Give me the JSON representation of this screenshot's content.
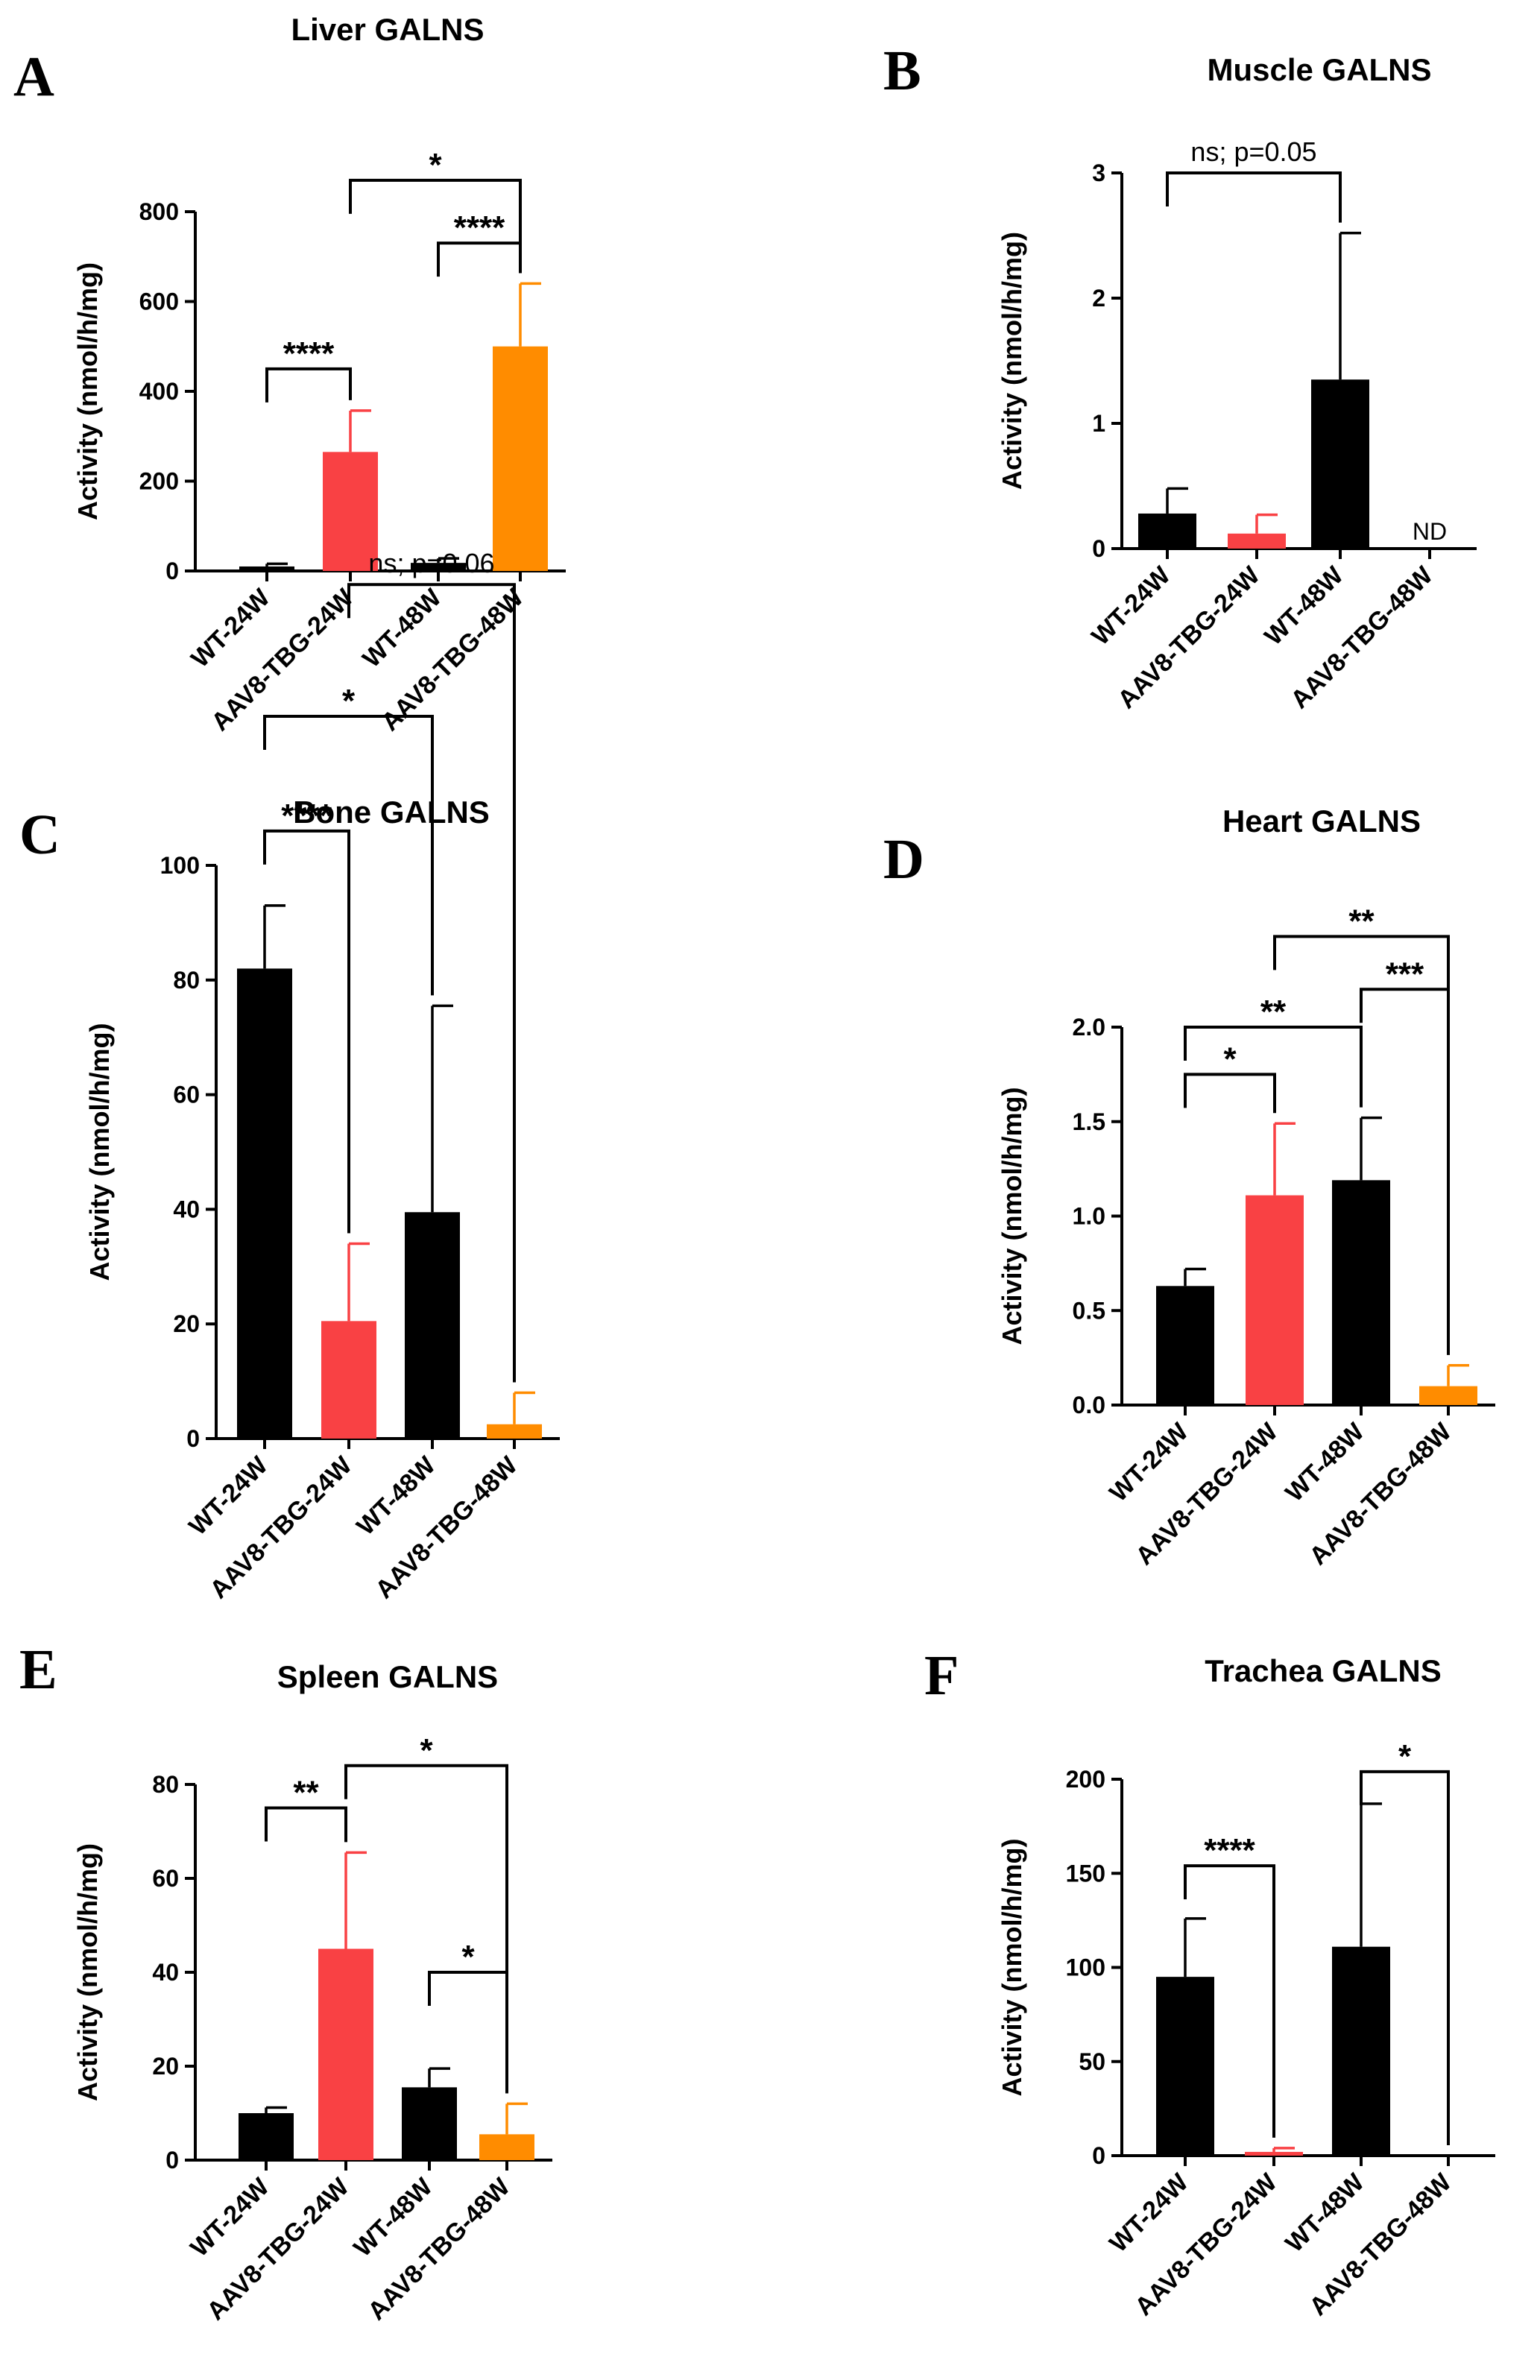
{
  "colors": {
    "WT-24W": "#000000",
    "AAV8-TBG-24W": "#f94144",
    "WT-48W": "#000000",
    "AAV8-TBG-48W": "#ff8c00"
  },
  "chart_data": [
    {
      "panel": "A",
      "type": "bar",
      "title": "Liver GALNS",
      "ylabel": "Activity (nmol/h/mg)",
      "categories": [
        "WT-24W",
        "AAV8-TBG-24W",
        "WT-48W",
        "AAV8-TBG-48W"
      ],
      "values": [
        10,
        265,
        18,
        500
      ],
      "errors": [
        6,
        92,
        10,
        140
      ],
      "ylim": [
        0,
        800
      ],
      "yticks": [
        0,
        200,
        400,
        600,
        800
      ],
      "significance": [
        {
          "from": 0,
          "to": 1,
          "label": "****",
          "y": 450
        },
        {
          "from": 2,
          "to": 3,
          "label": "****",
          "y": 730
        },
        {
          "from": 1,
          "to": 3,
          "label": "*",
          "y": 870
        }
      ],
      "annotations": []
    },
    {
      "panel": "B",
      "type": "bar",
      "title": "Muscle GALNS",
      "ylabel": "Activity (nmol/h/mg)",
      "categories": [
        "WT-24W",
        "AAV8-TBG-24W",
        "WT-48W",
        "AAV8-TBG-48W"
      ],
      "values": [
        0.28,
        0.12,
        1.35,
        0
      ],
      "errors": [
        0.2,
        0.15,
        1.17,
        0
      ],
      "ylim": [
        0,
        3
      ],
      "yticks": [
        0,
        1,
        2,
        3
      ],
      "significance": [
        {
          "from": 0,
          "to": 2,
          "label": "ns; p=0.05",
          "y": 3.0
        }
      ],
      "annotations": [
        {
          "index": 3,
          "text": "ND"
        }
      ]
    },
    {
      "panel": "C",
      "type": "bar",
      "title": "Bone GALNS",
      "ylabel": "Activity (nmol/h/mg)",
      "categories": [
        "WT-24W",
        "AAV8-TBG-24W",
        "WT-48W",
        "AAV8-TBG-48W"
      ],
      "values": [
        82,
        20.5,
        39.5,
        2.5
      ],
      "errors": [
        11,
        13.5,
        36,
        5.5
      ],
      "ylim": [
        0,
        100
      ],
      "yticks": [
        0,
        20,
        40,
        60,
        80,
        100
      ],
      "significance": [
        {
          "from": 0,
          "to": 1,
          "label": "****",
          "y": 106
        },
        {
          "from": 0,
          "to": 2,
          "label": "*",
          "y": 126
        },
        {
          "from": 1,
          "to": 3,
          "label": "ns; p=0.06",
          "y": 149
        }
      ],
      "annotations": []
    },
    {
      "panel": "D",
      "type": "bar",
      "title": "Heart  GALNS",
      "ylabel": "Activity (nmol/h/mg)",
      "categories": [
        "WT-24W",
        "AAV8-TBG-24W",
        "WT-48W",
        "AAV8-TBG-48W"
      ],
      "values": [
        0.63,
        1.11,
        1.19,
        0.1
      ],
      "errors": [
        0.09,
        0.38,
        0.33,
        0.11
      ],
      "ylim": [
        0,
        2.0
      ],
      "yticks": [
        "0.0",
        "0.5",
        "1.0",
        "1.5",
        "2.0"
      ],
      "significance": [
        {
          "from": 0,
          "to": 1,
          "label": "*",
          "y": 1.75
        },
        {
          "from": 0,
          "to": 2,
          "label": "**",
          "y": 2.0
        },
        {
          "from": 2,
          "to": 3,
          "label": "***",
          "y": 2.2
        },
        {
          "from": 1,
          "to": 3,
          "label": "**",
          "y": 2.48
        }
      ],
      "annotations": []
    },
    {
      "panel": "E",
      "type": "bar",
      "title": "Spleen  GALNS",
      "ylabel": "Activity (nmol/h/mg)",
      "categories": [
        "WT-24W",
        "AAV8-TBG-24W",
        "WT-48W",
        "AAV8-TBG-48W"
      ],
      "values": [
        10,
        45,
        15.5,
        5.5
      ],
      "errors": [
        1.2,
        20.5,
        4,
        6.5
      ],
      "ylim": [
        0,
        80
      ],
      "yticks": [
        0,
        20,
        40,
        60,
        80
      ],
      "significance": [
        {
          "from": 0,
          "to": 1,
          "label": "**",
          "y": 75
        },
        {
          "from": 2,
          "to": 3,
          "label": "*",
          "y": 40
        },
        {
          "from": 1,
          "to": 3,
          "label": "*",
          "y": 84
        }
      ],
      "annotations": []
    },
    {
      "panel": "F",
      "type": "bar",
      "title": "Trachea GALNS",
      "ylabel": "Activity (nmol/h/mg)",
      "categories": [
        "WT-24W",
        "AAV8-TBG-24W",
        "WT-48W",
        "AAV8-TBG-48W"
      ],
      "values": [
        95,
        2,
        111,
        0
      ],
      "errors": [
        31,
        2,
        76,
        0
      ],
      "ylim": [
        0,
        200
      ],
      "yticks": [
        0,
        50,
        100,
        150,
        200
      ],
      "significance": [
        {
          "from": 0,
          "to": 1,
          "label": "****",
          "y": 154
        },
        {
          "from": 2,
          "to": 3,
          "label": "*",
          "y": 204
        }
      ],
      "annotations": []
    }
  ]
}
